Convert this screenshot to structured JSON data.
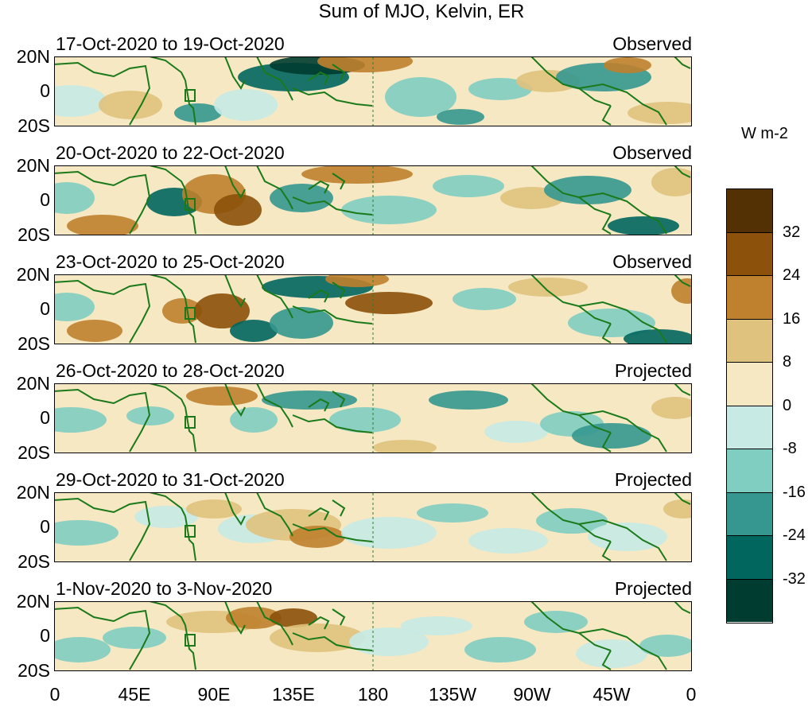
{
  "title": "Sum of MJO, Kelvin, ER",
  "units_label": "W m-2",
  "lat_labels": [
    "20N",
    "0",
    "20S"
  ],
  "lon_labels": [
    "0",
    "45E",
    "90E",
    "135E",
    "180",
    "135W",
    "90W",
    "45W",
    "0"
  ],
  "panels": [
    {
      "period": "17-Oct-2020 to 19-Oct-2020",
      "status": "Observed"
    },
    {
      "period": "20-Oct-2020 to 22-Oct-2020",
      "status": "Observed"
    },
    {
      "period": "23-Oct-2020 to 25-Oct-2020",
      "status": "Observed"
    },
    {
      "period": "26-Oct-2020 to 28-Oct-2020",
      "status": "Projected"
    },
    {
      "period": "29-Oct-2020 to 31-Oct-2020",
      "status": "Projected"
    },
    {
      "period": "1-Nov-2020 to 3-Nov-2020",
      "status": "Projected"
    }
  ],
  "colorbar": {
    "ticks": [
      "32",
      "24",
      "16",
      "8",
      "0",
      "-8",
      "-16",
      "-24",
      "-32"
    ],
    "colors": [
      "#543005",
      "#8c510a",
      "#bf812d",
      "#dfc27d",
      "#f6e8c3",
      "#c7eae5",
      "#80cdc1",
      "#35978f",
      "#01665e",
      "#003c30"
    ]
  },
  "colors": {
    "coastline": "#1a7a1a",
    "dateline": "#2e7d32"
  }
}
